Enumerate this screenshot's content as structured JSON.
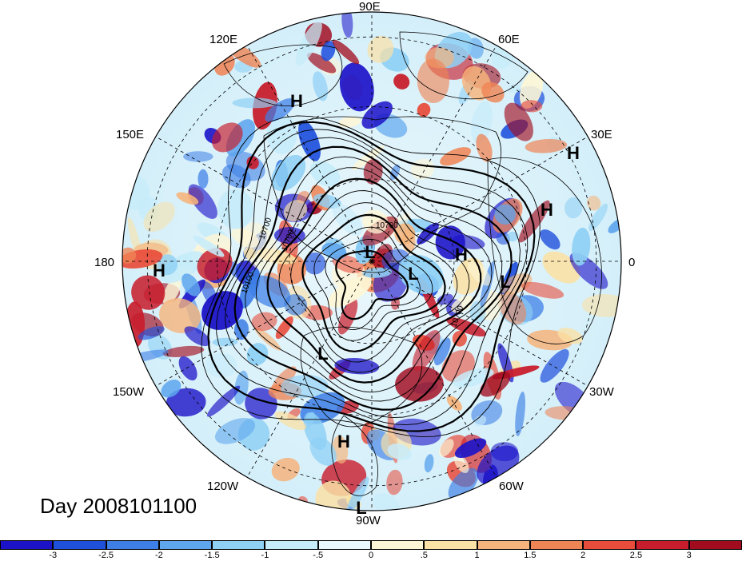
{
  "title": "Day 2008101100",
  "longitude_labels": [
    "90E",
    "60E",
    "30E",
    "0",
    "30W",
    "60W",
    "90W",
    "120W",
    "150W",
    "180",
    "150E",
    "120E"
  ],
  "pressure_markers": [
    {
      "type": "H",
      "label": "H"
    },
    {
      "type": "H",
      "label": "H"
    },
    {
      "type": "H",
      "label": "H"
    },
    {
      "type": "H",
      "label": "H"
    },
    {
      "type": "H",
      "label": "H"
    },
    {
      "type": "H",
      "label": "H"
    },
    {
      "type": "L",
      "label": "L"
    },
    {
      "type": "L",
      "label": "L"
    },
    {
      "type": "L",
      "label": "L"
    },
    {
      "type": "L",
      "label": "L"
    },
    {
      "type": "L",
      "label": "L"
    }
  ],
  "contour_labels": [
    "10700",
    "10700",
    "10100",
    "10700",
    "10700"
  ],
  "colorbar": {
    "tick_labels": [
      "-3",
      "-2.5",
      "-2",
      "-1.5",
      "-1",
      "-.5",
      "0",
      ".5",
      "1",
      "1.5",
      "2",
      "2.5",
      "3"
    ],
    "colors": [
      "#1c13c8",
      "#1f50dc",
      "#3d7fe6",
      "#5ea6ee",
      "#8fd0f5",
      "#c6ecfa",
      "#e8f8fc",
      "#fdf6d6",
      "#fae1a6",
      "#f6b47c",
      "#ef8455",
      "#e84c3b",
      "#c81d2c",
      "#a10c1f"
    ]
  }
}
